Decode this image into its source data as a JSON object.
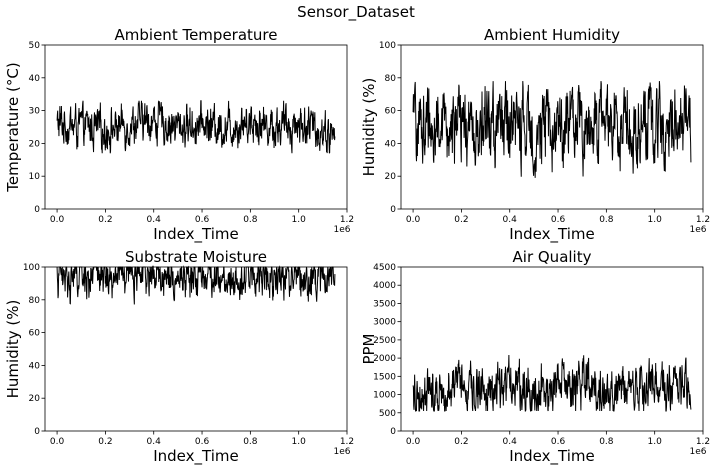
{
  "figure": {
    "suptitle": "Sensor_Dataset"
  },
  "chart_data": [
    {
      "type": "line",
      "title": "Ambient Temperature",
      "xlabel": "Index_Time",
      "ylabel": "Temperature (°C)",
      "x_offset_label": "1e6",
      "xlim": [
        -0.05,
        1.2
      ],
      "ylim": [
        0,
        50
      ],
      "xticks": [
        "0.0",
        "0.2",
        "0.4",
        "0.6",
        "0.8",
        "1.0",
        "1.2"
      ],
      "yticks": [
        "0",
        "10",
        "20",
        "30",
        "40",
        "50"
      ],
      "grid": false,
      "series": [
        {
          "x": [
            0,
            0.1,
            0.2,
            0.3,
            0.4,
            0.5,
            0.6,
            0.7,
            0.8,
            0.9,
            1.0,
            1.1,
            1.15
          ],
          "y": [
            26,
            25,
            24,
            26,
            27,
            25,
            26,
            25,
            27,
            25,
            26,
            24,
            22
          ],
          "y_min": 17,
          "y_max": 33
        }
      ],
      "color": "#000000"
    },
    {
      "type": "line",
      "title": "Ambient Humidity",
      "xlabel": "Index_Time",
      "ylabel": "Humidity (%)",
      "x_offset_label": "1e6",
      "xlim": [
        -0.05,
        1.2
      ],
      "ylim": [
        0,
        100
      ],
      "xticks": [
        "0.0",
        "0.2",
        "0.4",
        "0.6",
        "0.8",
        "1.0",
        "1.2"
      ],
      "yticks": [
        "0",
        "20",
        "40",
        "60",
        "80",
        "100"
      ],
      "grid": false,
      "series": [
        {
          "x": [
            0,
            0.1,
            0.2,
            0.3,
            0.4,
            0.5,
            0.6,
            0.7,
            0.8,
            0.9,
            1.0,
            1.1,
            1.15
          ],
          "y": [
            50,
            52,
            48,
            50,
            53,
            47,
            52,
            50,
            55,
            50,
            52,
            55,
            52
          ],
          "y_min": 19,
          "y_max": 78
        }
      ],
      "color": "#000000"
    },
    {
      "type": "line",
      "title": "Substrate Moisture",
      "xlabel": "Index_Time",
      "ylabel": "Humidity (%)",
      "x_offset_label": "1e6",
      "xlim": [
        -0.05,
        1.2
      ],
      "ylim": [
        0,
        100
      ],
      "xticks": [
        "0.0",
        "0.2",
        "0.4",
        "0.6",
        "0.8",
        "1.0",
        "1.2"
      ],
      "yticks": [
        "0",
        "20",
        "40",
        "60",
        "80",
        "100"
      ],
      "grid": false,
      "series": [
        {
          "x": [
            0,
            0.1,
            0.2,
            0.3,
            0.4,
            0.5,
            0.6,
            0.7,
            0.8,
            0.9,
            1.0,
            1.1,
            1.15
          ],
          "y": [
            95,
            94,
            95,
            96,
            95,
            94,
            95,
            95,
            94,
            96,
            95,
            94,
            95
          ],
          "y_min": 67,
          "y_max": 100
        }
      ],
      "color": "#000000"
    },
    {
      "type": "line",
      "title": "Air Quality",
      "xlabel": "Index_Time",
      "ylabel": "PPM",
      "x_offset_label": "1e6",
      "xlim": [
        -0.05,
        1.2
      ],
      "ylim": [
        0,
        4500
      ],
      "xticks": [
        "0.0",
        "0.2",
        "0.4",
        "0.6",
        "0.8",
        "1.0",
        "1.2"
      ],
      "yticks": [
        "0",
        "500",
        "1000",
        "1500",
        "2000",
        "2500",
        "3000",
        "3500",
        "4000",
        "4500"
      ],
      "grid": false,
      "series": [
        {
          "x": [
            0,
            0.1,
            0.2,
            0.3,
            0.4,
            0.5,
            0.6,
            0.7,
            0.8,
            0.9,
            1.0,
            1.1,
            1.15
          ],
          "y": [
            1000,
            1200,
            1300,
            1100,
            1400,
            1100,
            1200,
            1300,
            1000,
            1200,
            1300,
            1100,
            1300
          ],
          "y_min": 550,
          "y_max": 2300
        }
      ],
      "color": "#000000"
    }
  ]
}
